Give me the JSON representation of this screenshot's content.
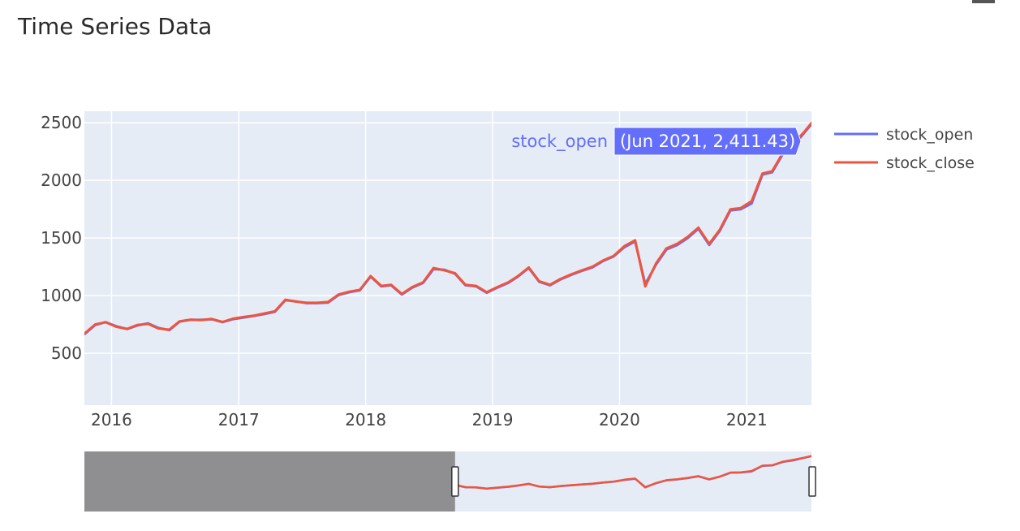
{
  "page": {
    "title": "Time Series Data"
  },
  "colors": {
    "plot_bg": "#e5ecf6",
    "grid": "#ffffff",
    "stock_open": "#636efa",
    "stock_close": "#ef553b",
    "range_mask": "#8f8f92",
    "range_bg": "#e5ecf6"
  },
  "legend": {
    "placement": "top-right",
    "items": [
      {
        "name": "stock_open",
        "color": "#636efa"
      },
      {
        "name": "stock_close",
        "color": "#ef553b"
      }
    ]
  },
  "hover": {
    "series": "stock_open",
    "label": "(Jun 2021, 2,411.43)",
    "color": "#636efa"
  },
  "range_selector": {
    "selected_start": "2018-09",
    "selected_end": "2021-07"
  },
  "chart_data": {
    "type": "line",
    "title": "",
    "xlabel": "",
    "ylabel": "",
    "xlim": [
      "2015-10-15",
      "2021-07-06"
    ],
    "ylim": [
      50,
      2600
    ],
    "grid": true,
    "x_ticks": [
      "2016",
      "2017",
      "2018",
      "2019",
      "2020",
      "2021"
    ],
    "y_ticks": [
      500,
      1000,
      1500,
      2000,
      2500
    ],
    "x": [
      "2015-10",
      "2015-11",
      "2015-12",
      "2016-01",
      "2016-02",
      "2016-03",
      "2016-04",
      "2016-05",
      "2016-06",
      "2016-07",
      "2016-08",
      "2016-09",
      "2016-10",
      "2016-11",
      "2016-12",
      "2017-01",
      "2017-02",
      "2017-03",
      "2017-04",
      "2017-05",
      "2017-06",
      "2017-07",
      "2017-08",
      "2017-09",
      "2017-10",
      "2017-11",
      "2017-12",
      "2018-01",
      "2018-02",
      "2018-03",
      "2018-04",
      "2018-05",
      "2018-06",
      "2018-07",
      "2018-08",
      "2018-09",
      "2018-10",
      "2018-11",
      "2018-12",
      "2019-01",
      "2019-02",
      "2019-03",
      "2019-04",
      "2019-05",
      "2019-06",
      "2019-07",
      "2019-08",
      "2019-09",
      "2019-10",
      "2019-11",
      "2019-12",
      "2020-01",
      "2020-02",
      "2020-03",
      "2020-04",
      "2020-05",
      "2020-06",
      "2020-07",
      "2020-08",
      "2020-09",
      "2020-10",
      "2020-11",
      "2020-12",
      "2021-01",
      "2021-02",
      "2021-03",
      "2021-04",
      "2021-05",
      "2021-06",
      "2021-07"
    ],
    "series": [
      {
        "name": "stock_open",
        "values": [
          665,
          745,
          770,
          735,
          710,
          740,
          760,
          720,
          700,
          775,
          790,
          790,
          795,
          770,
          795,
          810,
          825,
          840,
          860,
          960,
          950,
          935,
          935,
          940,
          1005,
          1030,
          1045,
          1165,
          1080,
          1090,
          1010,
          1070,
          1110,
          1230,
          1225,
          1190,
          1090,
          1080,
          1025,
          1070,
          1110,
          1165,
          1240,
          1120,
          1090,
          1140,
          1180,
          1215,
          1245,
          1300,
          1340,
          1420,
          1470,
          1100,
          1270,
          1400,
          1440,
          1500,
          1580,
          1440,
          1560,
          1740,
          1750,
          1800,
          2050,
          2070,
          2230,
          2300,
          2411.43,
          2520
        ]
      },
      {
        "name": "stock_close",
        "values": [
          670,
          750,
          770,
          730,
          712,
          745,
          755,
          715,
          705,
          778,
          792,
          788,
          798,
          772,
          800,
          815,
          828,
          845,
          865,
          965,
          948,
          938,
          938,
          945,
          1010,
          1035,
          1050,
          1170,
          1085,
          1095,
          1015,
          1075,
          1115,
          1240,
          1220,
          1195,
          1095,
          1085,
          1030,
          1075,
          1115,
          1170,
          1245,
          1125,
          1095,
          1145,
          1185,
          1220,
          1250,
          1305,
          1345,
          1430,
          1480,
          1080,
          1280,
          1410,
          1450,
          1510,
          1590,
          1450,
          1570,
          1750,
          1760,
          1820,
          2060,
          2080,
          2240,
          2320,
          2420,
          2530
        ]
      }
    ]
  }
}
